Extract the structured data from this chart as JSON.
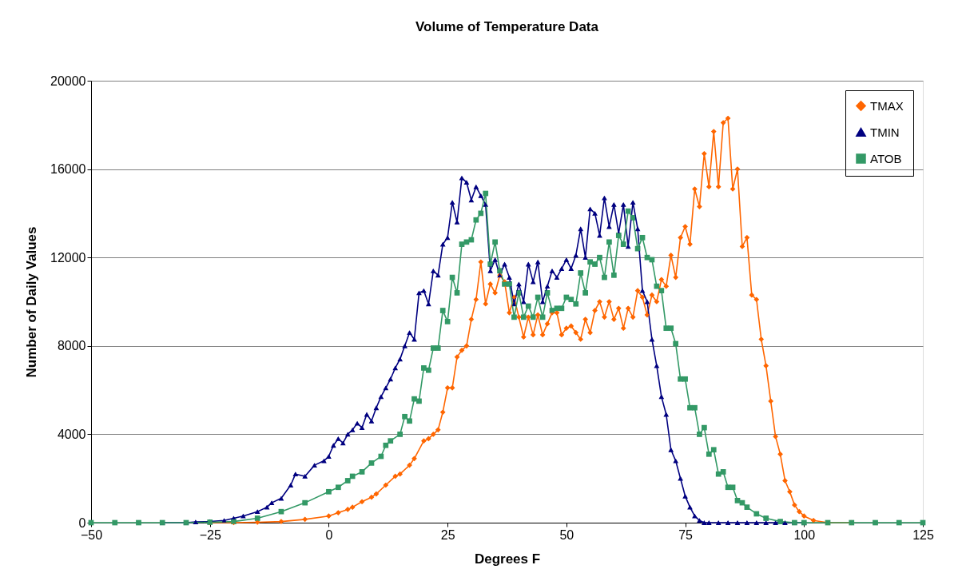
{
  "chart_data": {
    "type": "line",
    "title": "Volume of Temperature Data",
    "xlabel": "Degrees F",
    "ylabel": "Number of Daily Values",
    "xlim": [
      -50,
      125
    ],
    "xticks": [
      -50,
      -25,
      0,
      25,
      50,
      75,
      100,
      125
    ],
    "ylim": [
      0,
      20000
    ],
    "yticks": [
      0,
      4000,
      8000,
      12000,
      16000,
      20000
    ],
    "grid": "y",
    "legend": "top right",
    "line_style": "solid",
    "series": [
      {
        "name": "TMAX",
        "color": "#ff6600",
        "marker": "diamond",
        "x": [
          -25,
          -20,
          -15,
          -10,
          -5,
          0,
          2,
          4,
          5,
          7,
          9,
          10,
          12,
          14,
          15,
          17,
          18,
          20,
          21,
          22,
          23,
          24,
          25,
          26,
          27,
          28,
          29,
          30,
          31,
          32,
          33,
          34,
          35,
          36,
          37,
          38,
          39,
          40,
          41,
          42,
          43,
          44,
          45,
          46,
          47,
          48,
          49,
          50,
          51,
          52,
          53,
          54,
          55,
          56,
          57,
          58,
          59,
          60,
          61,
          62,
          63,
          64,
          65,
          66,
          67,
          68,
          69,
          70,
          71,
          72,
          73,
          74,
          75,
          76,
          77,
          78,
          79,
          80,
          81,
          82,
          83,
          84,
          85,
          86,
          87,
          88,
          89,
          90,
          91,
          92,
          93,
          94,
          95,
          96,
          97,
          98,
          99,
          100,
          102,
          105,
          110
        ],
        "values": [
          0,
          0,
          20,
          50,
          150,
          300,
          450,
          600,
          700,
          950,
          1150,
          1300,
          1700,
          2100,
          2200,
          2600,
          2900,
          3700,
          3800,
          4000,
          4200,
          5000,
          6100,
          6100,
          7500,
          7800,
          8000,
          9200,
          10100,
          11800,
          9900,
          10800,
          10400,
          11200,
          10900,
          9500,
          10200,
          9300,
          8400,
          9300,
          8500,
          9400,
          8500,
          9000,
          9500,
          9500,
          8500,
          8800,
          8900,
          8600,
          8300,
          9200,
          8600,
          9600,
          10000,
          9300,
          10000,
          9200,
          9700,
          8800,
          9700,
          9300,
          10500,
          10200,
          9400,
          10300,
          10000,
          11000,
          10700,
          12100,
          11100,
          12900,
          13400,
          12600,
          15100,
          14300,
          16700,
          15200,
          17700,
          15200,
          18100,
          18300,
          15100,
          16000,
          12500,
          12900,
          10300,
          10100,
          8300,
          7100,
          5500,
          3900,
          3100,
          1900,
          1400,
          800,
          500,
          300,
          100,
          0,
          0
        ]
      },
      {
        "name": "TMIN",
        "color": "#000080",
        "marker": "triangle",
        "x": [
          -35,
          -30,
          -28,
          -25,
          -22,
          -20,
          -18,
          -15,
          -13,
          -12,
          -10,
          -8,
          -7,
          -5,
          -3,
          -1,
          0,
          1,
          2,
          3,
          4,
          5,
          6,
          7,
          8,
          9,
          10,
          11,
          12,
          13,
          14,
          15,
          16,
          17,
          18,
          19,
          20,
          21,
          22,
          23,
          24,
          25,
          26,
          27,
          28,
          29,
          30,
          31,
          32,
          33,
          34,
          35,
          36,
          37,
          38,
          39,
          40,
          41,
          42,
          43,
          44,
          45,
          46,
          47,
          48,
          49,
          50,
          51,
          52,
          53,
          54,
          55,
          56,
          57,
          58,
          59,
          60,
          61,
          62,
          63,
          64,
          65,
          66,
          67,
          68,
          69,
          70,
          71,
          72,
          73,
          74,
          75,
          76,
          77,
          78,
          79,
          80,
          82,
          84,
          86,
          88,
          90,
          92,
          94,
          96,
          98,
          100
        ],
        "values": [
          0,
          0,
          30,
          50,
          100,
          200,
          300,
          500,
          700,
          900,
          1100,
          1700,
          2200,
          2100,
          2600,
          2800,
          3000,
          3500,
          3800,
          3600,
          4000,
          4200,
          4500,
          4300,
          4900,
          4600,
          5200,
          5700,
          6100,
          6500,
          7000,
          7400,
          8000,
          8600,
          8300,
          10400,
          10500,
          9900,
          11400,
          11200,
          12600,
          12900,
          14500,
          13600,
          15600,
          15400,
          14600,
          15200,
          14800,
          14400,
          11400,
          11900,
          11200,
          11700,
          11100,
          9900,
          10800,
          10000,
          11700,
          10900,
          11800,
          10000,
          10700,
          11400,
          11100,
          11500,
          11900,
          11500,
          12100,
          13300,
          12000,
          14200,
          14000,
          13000,
          14700,
          13400,
          14400,
          13100,
          14400,
          12500,
          14500,
          13300,
          10500,
          10000,
          8300,
          7100,
          5700,
          4900,
          3300,
          2800,
          2000,
          1200,
          700,
          300,
          100,
          0,
          0,
          0,
          0,
          0,
          0,
          0,
          0,
          0,
          0,
          0,
          0
        ]
      },
      {
        "name": "ATOB",
        "color": "#339966",
        "marker": "square",
        "x": [
          -50,
          -45,
          -40,
          -35,
          -30,
          -25,
          -20,
          -15,
          -10,
          -5,
          0,
          2,
          4,
          5,
          7,
          9,
          11,
          12,
          13,
          15,
          16,
          17,
          18,
          19,
          20,
          21,
          22,
          23,
          24,
          25,
          26,
          27,
          28,
          29,
          30,
          31,
          32,
          33,
          34,
          35,
          36,
          37,
          38,
          39,
          40,
          41,
          42,
          43,
          44,
          45,
          46,
          47,
          48,
          49,
          50,
          51,
          52,
          53,
          54,
          55,
          56,
          57,
          58,
          59,
          60,
          61,
          62,
          63,
          64,
          65,
          66,
          67,
          68,
          69,
          70,
          71,
          72,
          73,
          74,
          75,
          76,
          77,
          78,
          79,
          80,
          81,
          82,
          83,
          84,
          85,
          86,
          87,
          88,
          90,
          92,
          95,
          98,
          100,
          105,
          110,
          115,
          120,
          125
        ],
        "values": [
          0,
          0,
          0,
          0,
          0,
          20,
          50,
          200,
          500,
          900,
          1400,
          1600,
          1900,
          2100,
          2300,
          2700,
          3000,
          3500,
          3700,
          4000,
          4800,
          4600,
          5600,
          5500,
          7000,
          6900,
          7900,
          7900,
          9600,
          9100,
          11100,
          10400,
          12600,
          12700,
          12800,
          13700,
          14000,
          14900,
          11700,
          12700,
          11400,
          10800,
          10800,
          9300,
          10400,
          9300,
          9800,
          9300,
          10200,
          9300,
          10400,
          9600,
          9700,
          9700,
          10200,
          10100,
          9900,
          11300,
          10400,
          11800,
          11700,
          12000,
          11100,
          12700,
          11200,
          13000,
          12600,
          14100,
          13800,
          12400,
          12900,
          12000,
          11900,
          10700,
          10500,
          8800,
          8800,
          8100,
          6500,
          6500,
          5200,
          5200,
          4000,
          4300,
          3100,
          3300,
          2200,
          2300,
          1600,
          1600,
          1000,
          900,
          700,
          400,
          200,
          50,
          0,
          0,
          0,
          0,
          0,
          0,
          0
        ]
      }
    ]
  }
}
